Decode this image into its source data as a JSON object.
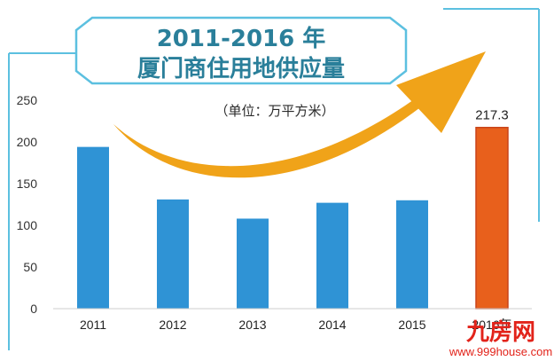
{
  "chart_data": {
    "type": "bar",
    "title": "2011-2016 年",
    "subtitle": "厦门商住用地供应量",
    "unit_note": "（单位：万平方米）",
    "categories": [
      "2011",
      "2012",
      "2013",
      "2014",
      "2015",
      "2016年"
    ],
    "values": [
      194,
      131,
      108,
      127,
      130,
      217.3
    ],
    "data_labels": [
      "",
      "",
      "",
      "",
      "",
      "217.3"
    ],
    "highlight_index": 5,
    "ylim": [
      0,
      250
    ],
    "yticks": [
      0,
      50,
      100,
      150,
      200,
      250
    ],
    "grid": false,
    "legend": "none",
    "xlabel": "",
    "ylabel": "",
    "colors": {
      "bar": "#2f93d5",
      "highlight_bar": "#e8601c",
      "arrow": "#f0a319",
      "frame": "#5cc0e0",
      "title": "#2a7f9a"
    }
  },
  "watermark": {
    "logo": "九房网",
    "url": "www.999house.com"
  }
}
